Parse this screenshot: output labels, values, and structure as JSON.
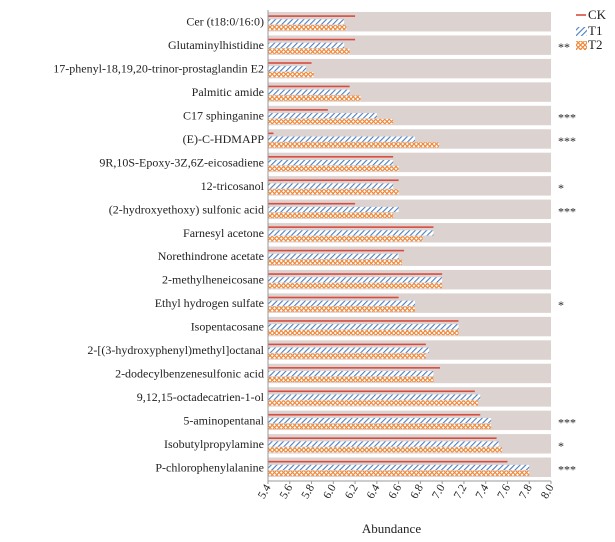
{
  "chart_data": {
    "type": "bar",
    "orientation": "horizontal",
    "xlabel": "Abundance",
    "xlim": [
      5.4,
      8.0
    ],
    "xticks": [
      "5.4",
      "5.6",
      "5.8",
      "6.0",
      "6.2",
      "6.4",
      "6.6",
      "6.8",
      "7.0",
      "7.2",
      "7.4",
      "7.6",
      "7.8",
      "8.0"
    ],
    "categories": [
      "Cer (t18:0/16:0)",
      "Glutaminylhistidine",
      "17-phenyl-18,19,20-trinor-prostaglandin E2",
      "Palmitic amide",
      "C17 sphinganine",
      "(E)-C-HDMAPP",
      "9R,10S-Epoxy-3Z,6Z-eicosadiene",
      "12-tricosanol",
      "(2-hydroxyethoxy) sulfonic acid",
      "Farnesyl acetone",
      "Norethindrone acetate",
      "2-methylheneicosane",
      "Ethyl hydrogen sulfate",
      "Isopentacosane",
      "2-[(3-hydroxyphenyl)methyl]octanal",
      "2-dodecylbenzenesulfonic acid",
      "9,12,15-octadecatrien-1-ol",
      "5-aminopentanal",
      "Isobutylpropylamine",
      "P-chlorophenylalanine"
    ],
    "series": [
      {
        "name": "CK",
        "color": "#d94b3f",
        "values": [
          6.2,
          6.2,
          5.8,
          6.15,
          5.95,
          5.45,
          6.55,
          6.6,
          6.2,
          6.92,
          6.65,
          7.0,
          6.6,
          7.15,
          6.85,
          6.98,
          7.3,
          7.35,
          7.5,
          7.6
        ]
      },
      {
        "name": "T1",
        "color": "#4a7fc1",
        "values": [
          6.1,
          6.1,
          5.75,
          6.15,
          6.4,
          6.75,
          6.55,
          6.55,
          6.6,
          6.92,
          6.6,
          7.0,
          6.75,
          7.15,
          6.88,
          6.92,
          7.35,
          7.45,
          7.52,
          7.8
        ]
      },
      {
        "name": "T2",
        "color": "#f08a3c",
        "values": [
          6.12,
          6.15,
          5.82,
          6.25,
          6.55,
          6.97,
          6.6,
          6.6,
          6.55,
          6.82,
          6.63,
          7.0,
          6.75,
          7.15,
          6.85,
          6.92,
          7.33,
          7.45,
          7.55,
          7.8
        ]
      }
    ],
    "significance": [
      "",
      "**",
      "",
      "",
      "***",
      "***",
      "",
      "*",
      "***",
      "",
      "",
      "",
      "*",
      "",
      "",
      "",
      "",
      "***",
      "*",
      "***"
    ],
    "background_band_color": "#dcd2d0",
    "legend_position": "top-right"
  }
}
